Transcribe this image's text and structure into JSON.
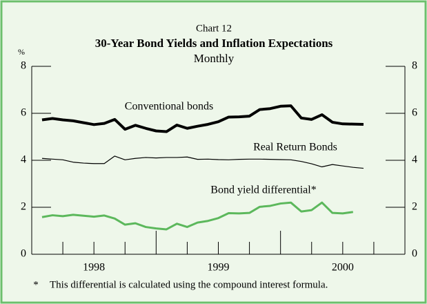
{
  "chart_data": {
    "type": "line",
    "chart_label": "Chart 12",
    "title": "30-Year Bond Yields and Inflation Expectations",
    "subtitle": "Monthly",
    "y_unit": "%",
    "footnote_marker": "*",
    "footnote": "This differential is calculated using the compound interest formula.",
    "xlim": [
      1998,
      2001
    ],
    "xticks": [
      {
        "value": 1998.5,
        "label": "1998"
      },
      {
        "value": 1999.5,
        "label": "1999"
      },
      {
        "value": 2000.5,
        "label": "2000"
      }
    ],
    "xminorticks": [
      1998.25,
      1998.5,
      1998.75,
      1999.0,
      1999.25,
      1999.5,
      1999.75,
      2000.0,
      2000.25,
      2000.5,
      2000.75
    ],
    "ylim": [
      0,
      8
    ],
    "yticks": [
      0,
      2,
      4,
      6,
      8
    ],
    "x": [
      1998.083,
      1998.167,
      1998.25,
      1998.333,
      1998.417,
      1998.5,
      1998.583,
      1998.667,
      1998.75,
      1998.833,
      1998.917,
      1999.0,
      1999.083,
      1999.167,
      1999.25,
      1999.333,
      1999.417,
      1999.5,
      1999.583,
      1999.667,
      1999.75,
      1999.833,
      1999.917,
      2000.0,
      2000.083,
      2000.167,
      2000.25,
      2000.333,
      2000.417,
      2000.5,
      2000.583,
      2000.667
    ],
    "series": [
      {
        "name": "Conventional bonds",
        "color": "#000000",
        "width": 4,
        "values": [
          5.72,
          5.78,
          5.72,
          5.68,
          5.6,
          5.52,
          5.57,
          5.74,
          5.32,
          5.49,
          5.36,
          5.25,
          5.22,
          5.5,
          5.36,
          5.45,
          5.53,
          5.64,
          5.84,
          5.85,
          5.88,
          6.16,
          6.2,
          6.3,
          6.32,
          5.8,
          5.74,
          5.94,
          5.62,
          5.55,
          5.54,
          5.53
        ]
      },
      {
        "name": "Real Return Bonds",
        "color": "#000000",
        "width": 1.2,
        "values": [
          4.08,
          4.05,
          4.02,
          3.92,
          3.88,
          3.86,
          3.86,
          4.18,
          4.02,
          4.08,
          4.12,
          4.1,
          4.12,
          4.12,
          4.14,
          4.04,
          4.05,
          4.03,
          4.02,
          4.04,
          4.05,
          4.05,
          4.04,
          4.03,
          4.02,
          3.95,
          3.85,
          3.72,
          3.82,
          3.76,
          3.7,
          3.66
        ]
      },
      {
        "name": "Bond yield differential*",
        "color": "#5cb85c",
        "width": 3,
        "values": [
          1.58,
          1.66,
          1.62,
          1.68,
          1.64,
          1.6,
          1.65,
          1.52,
          1.26,
          1.32,
          1.16,
          1.1,
          1.06,
          1.3,
          1.16,
          1.35,
          1.42,
          1.54,
          1.75,
          1.74,
          1.76,
          2.02,
          2.06,
          2.16,
          2.2,
          1.82,
          1.88,
          2.2,
          1.76,
          1.74,
          1.8,
          null
        ]
      }
    ]
  }
}
